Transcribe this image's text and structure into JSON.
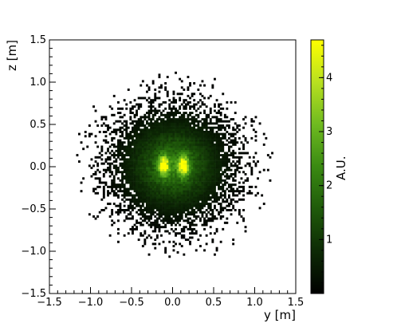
{
  "chart_data": {
    "type": "heatmap",
    "title": "",
    "xlabel": "y [m]",
    "ylabel": "z [m]",
    "xlim": [
      -1.5,
      1.5
    ],
    "ylim": [
      -1.5,
      1.5
    ],
    "x_ticks": [
      -1.5,
      -1.0,
      -0.5,
      0.0,
      0.5,
      1.0,
      1.5
    ],
    "x_tick_labels": [
      "−1.5",
      "−1.0",
      "−0.5",
      "0.0",
      "0.5",
      "1.0",
      "1.5"
    ],
    "y_ticks": [
      -1.5,
      -1.0,
      -0.5,
      0.0,
      0.5,
      1.0,
      1.5
    ],
    "y_tick_labels": [
      "−1.5",
      "−1.0",
      "−0.5",
      "0.0",
      "0.5",
      "1.0",
      "1.5"
    ],
    "grid": false,
    "colorbar": {
      "label": "A.U.",
      "range": [
        0,
        4.7
      ],
      "ticks": [
        1,
        2,
        3,
        4
      ],
      "tick_labels": [
        "1",
        "2",
        "3",
        "4"
      ],
      "colormap": [
        "#000000",
        "#0d2a05",
        "#1f5a0a",
        "#3a8a12",
        "#6fba20",
        "#b8e020",
        "#ffff00"
      ]
    },
    "distribution": {
      "description_free": true,
      "peaks": [
        {
          "y": -0.12,
          "z": 0.0,
          "value": 4.6
        },
        {
          "y": 0.12,
          "z": 0.0,
          "value": 4.6
        }
      ],
      "halo_radius": 1.0,
      "bin_size": 0.025
    }
  }
}
